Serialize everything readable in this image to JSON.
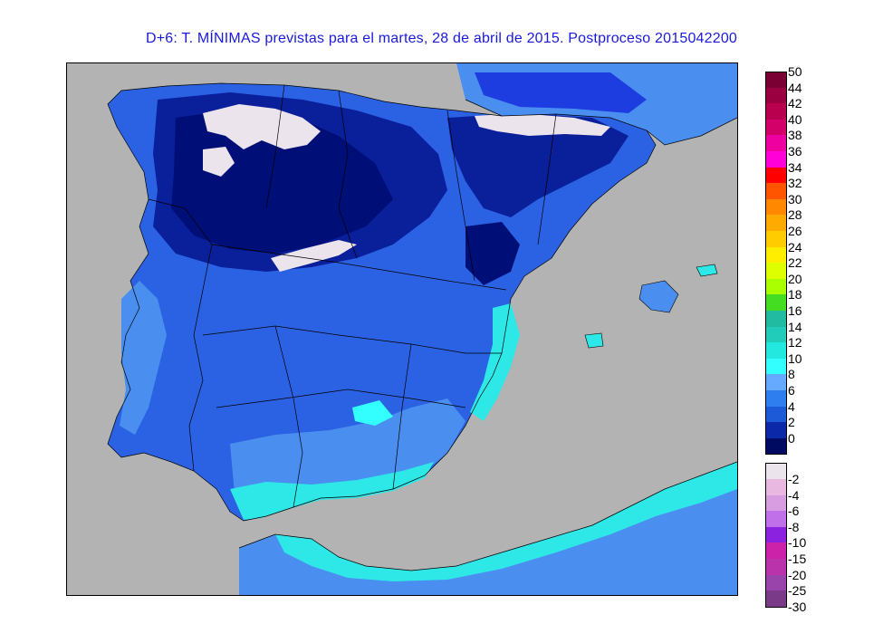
{
  "title": "D+6: T. MÍNIMAS previstas para el martes, 28 de abril de 2015. Postproceso 2015042200",
  "colors": {
    "sea": "#b3b3b3",
    "land_deep": "#000f78",
    "land_blue": "#1e3de0",
    "land_mid": "#2b6be8",
    "land_light": "#4a8ff0",
    "land_pale": "#6fa8f5",
    "teal": "#2ee8e8",
    "snow": "#e8e0e8"
  },
  "legend": {
    "positive": [
      {
        "label": "50",
        "color": "#7a0033"
      },
      {
        "label": "44",
        "color": "#9a0040"
      },
      {
        "label": "42",
        "color": "#b8004e"
      },
      {
        "label": "40",
        "color": "#d3006a"
      },
      {
        "label": "38",
        "color": "#ee00a0"
      },
      {
        "label": "36",
        "color": "#ff00d8"
      },
      {
        "label": "34",
        "color": "#ff0000"
      },
      {
        "label": "32",
        "color": "#ff5500"
      },
      {
        "label": "30",
        "color": "#ff8800"
      },
      {
        "label": "28",
        "color": "#ffaa00"
      },
      {
        "label": "26",
        "color": "#ffcc00"
      },
      {
        "label": "24",
        "color": "#ffee00"
      },
      {
        "label": "22",
        "color": "#ddff00"
      },
      {
        "label": "20",
        "color": "#aaff00"
      },
      {
        "label": "18",
        "color": "#44dd22"
      },
      {
        "label": "16",
        "color": "#20bba0"
      },
      {
        "label": "14",
        "color": "#22ccbb"
      },
      {
        "label": "12",
        "color": "#22e8e0"
      },
      {
        "label": "10",
        "color": "#33ffff"
      },
      {
        "label": "8",
        "color": "#66aaff"
      },
      {
        "label": "6",
        "color": "#2e7ef0"
      },
      {
        "label": "4",
        "color": "#1c5ad8"
      },
      {
        "label": "2",
        "color": "#0a28a8"
      },
      {
        "label": "0",
        "color": "#000a60"
      }
    ],
    "negative": [
      {
        "label": "-2",
        "color": "#ece4ec"
      },
      {
        "label": "-4",
        "color": "#e8b8e0"
      },
      {
        "label": "-6",
        "color": "#d89ce0"
      },
      {
        "label": "-8",
        "color": "#c070e8"
      },
      {
        "label": "-10",
        "color": "#8a22e0"
      },
      {
        "label": "-15",
        "color": "#cc22aa"
      },
      {
        "label": "-20",
        "color": "#bb33aa"
      },
      {
        "label": "-25",
        "color": "#9944aa"
      },
      {
        "label": "-30",
        "color": "#7a3a88"
      }
    ]
  }
}
